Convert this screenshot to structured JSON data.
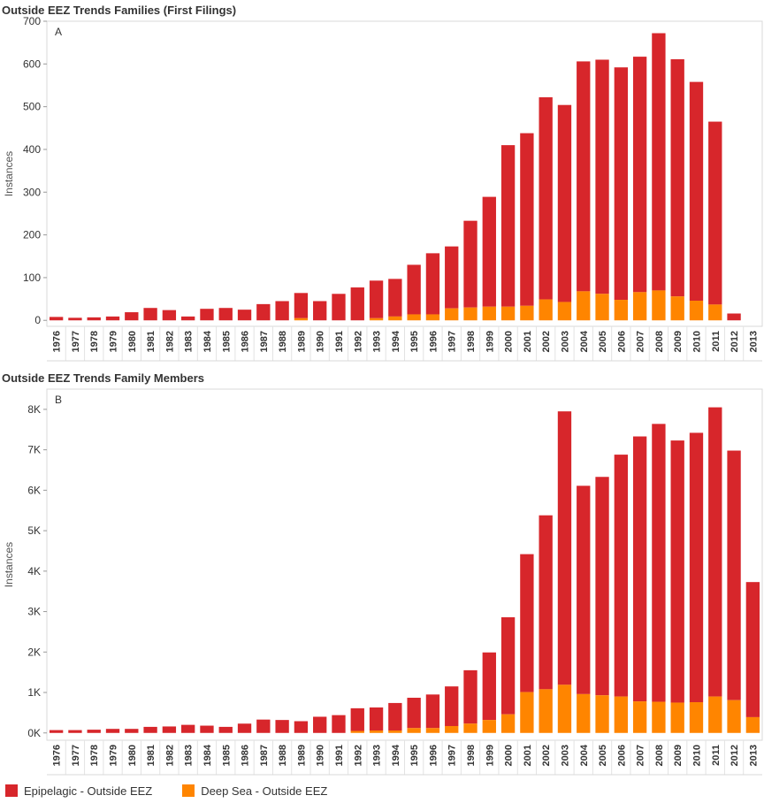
{
  "colors": {
    "epipelagic": "#d7262b",
    "deep_sea": "#ff8500"
  },
  "legend": {
    "epipelagic_label": "Epipelagic - Outside EEZ",
    "deep_sea_label": "Deep Sea - Outside EEZ"
  },
  "chart_data": [
    {
      "type": "bar",
      "stacked": true,
      "title": "Outside EEZ Trends Families (First Filings)",
      "panel_label": "A",
      "ylabel": "Instances",
      "ylim": [
        -14,
        700
      ],
      "yticks": [
        0,
        100,
        200,
        300,
        400,
        500,
        600,
        700
      ],
      "ytick_labels": [
        "0",
        "100",
        "200",
        "300",
        "400",
        "500",
        "600",
        "700"
      ],
      "categories": [
        "1976",
        "1977",
        "1978",
        "1979",
        "1980",
        "1981",
        "1982",
        "1983",
        "1984",
        "1985",
        "1986",
        "1987",
        "1988",
        "1989",
        "1990",
        "1991",
        "1992",
        "1993",
        "1994",
        "1995",
        "1996",
        "1997",
        "1998",
        "1999",
        "2000",
        "2001",
        "2002",
        "2003",
        "2004",
        "2005",
        "2006",
        "2007",
        "2008",
        "2009",
        "2010",
        "2011",
        "2012",
        "2013"
      ],
      "series": [
        {
          "name": "Deep Sea - Outside EEZ",
          "values": [
            0,
            0,
            0,
            0,
            0,
            0,
            0,
            0,
            0,
            0,
            0,
            0,
            0,
            5,
            0,
            0,
            0,
            5,
            9,
            14,
            14,
            28,
            30,
            32,
            32,
            34,
            49,
            43,
            68,
            62,
            48,
            66,
            70,
            56,
            46,
            37,
            0,
            0
          ]
        },
        {
          "name": "Epipelagic - Outside EEZ",
          "values": [
            8,
            6,
            7,
            9,
            19,
            29,
            24,
            9,
            27,
            29,
            25,
            38,
            45,
            59,
            45,
            62,
            77,
            88,
            88,
            116,
            143,
            145,
            203,
            257,
            378,
            404,
            473,
            461,
            538,
            548,
            544,
            551,
            602,
            555,
            512,
            428,
            16,
            0
          ]
        }
      ]
    },
    {
      "type": "bar",
      "stacked": true,
      "title": "Outside EEZ Trends Family Members",
      "panel_label": "B",
      "ylabel": "Instances",
      "ylim": [
        -180,
        8500
      ],
      "yticks": [
        0,
        1000,
        2000,
        3000,
        4000,
        5000,
        6000,
        7000,
        8000
      ],
      "ytick_labels": [
        "0K",
        "1K",
        "2K",
        "3K",
        "4K",
        "5K",
        "6K",
        "7K",
        "8K"
      ],
      "categories": [
        "1976",
        "1977",
        "1978",
        "1979",
        "1980",
        "1981",
        "1982",
        "1983",
        "1984",
        "1985",
        "1986",
        "1987",
        "1988",
        "1989",
        "1990",
        "1991",
        "1992",
        "1993",
        "1994",
        "1995",
        "1996",
        "1997",
        "1998",
        "1999",
        "2000",
        "2001",
        "2002",
        "2003",
        "2004",
        "2005",
        "2006",
        "2007",
        "2008",
        "2009",
        "2010",
        "2011",
        "2012",
        "2013"
      ],
      "series": [
        {
          "name": "Deep Sea - Outside EEZ",
          "values": [
            0,
            0,
            0,
            0,
            0,
            0,
            0,
            0,
            0,
            0,
            0,
            0,
            0,
            0,
            0,
            0,
            50,
            60,
            60,
            120,
            120,
            170,
            230,
            320,
            460,
            1010,
            1080,
            1190,
            960,
            930,
            900,
            780,
            770,
            750,
            760,
            900,
            810,
            390
          ]
        },
        {
          "name": "Epipelagic - Outside EEZ",
          "values": [
            70,
            70,
            80,
            100,
            100,
            150,
            160,
            200,
            180,
            150,
            230,
            330,
            320,
            290,
            400,
            440,
            560,
            570,
            680,
            750,
            830,
            980,
            1320,
            1670,
            2400,
            3410,
            4300,
            6760,
            5150,
            5400,
            5980,
            6550,
            6870,
            6480,
            6660,
            7150,
            6170,
            3340
          ]
        }
      ]
    }
  ]
}
